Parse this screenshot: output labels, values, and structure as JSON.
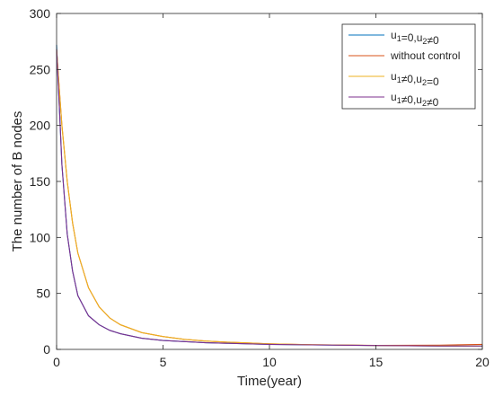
{
  "chart_data": {
    "type": "line",
    "xlabel": "Time(year)",
    "ylabel": "The number of B nodes",
    "xlim": [
      0,
      20
    ],
    "ylim": [
      0,
      300
    ],
    "xticks": [
      0,
      5,
      10,
      15,
      20
    ],
    "yticks": [
      0,
      50,
      100,
      150,
      200,
      250,
      300
    ],
    "grid": false,
    "legend_position": "top-right",
    "series": [
      {
        "name_parts": [
          [
            "u",
            "1"
          ],
          [
            "=0,u",
            ""
          ],
          [
            "",
            "2"
          ],
          [
            "≠0",
            ""
          ]
        ],
        "color": "#0072BD",
        "x": [
          0,
          0.1,
          0.25,
          0.5,
          0.75,
          1,
          1.5,
          2,
          2.5,
          3,
          4,
          5,
          6,
          7,
          8,
          10,
          12,
          15,
          18,
          20
        ],
        "y": [
          272,
          229,
          165,
          103,
          70,
          48,
          30,
          22,
          17,
          14,
          10,
          8,
          7,
          6,
          5.5,
          4.5,
          4,
          3.5,
          3,
          3
        ]
      },
      {
        "name_parts": [
          [
            "without control",
            ""
          ]
        ],
        "color": "#D95319",
        "x": [
          0,
          0.1,
          0.25,
          0.5,
          0.75,
          1,
          1.5,
          2,
          2.5,
          3,
          4,
          5,
          6,
          7,
          8,
          10,
          12,
          15,
          18,
          20
        ],
        "y": [
          268,
          240,
          200,
          150,
          113,
          86,
          55,
          38,
          28,
          22,
          15,
          11.5,
          9,
          7.5,
          6.5,
          5,
          4.2,
          3.6,
          3.8,
          4.5
        ]
      },
      {
        "name_parts": [
          [
            "u",
            "1"
          ],
          [
            "≠0,u",
            ""
          ],
          [
            "",
            "2"
          ],
          [
            "=0",
            ""
          ]
        ],
        "color": "#EDB120",
        "x": [
          0,
          0.1,
          0.25,
          0.5,
          0.75,
          1,
          1.5,
          2,
          2.5,
          3,
          4,
          5,
          6,
          7,
          8,
          10,
          12,
          15,
          18,
          20
        ],
        "y": [
          268,
          240,
          200,
          150,
          113,
          86,
          55,
          38,
          28,
          22,
          15,
          11.5,
          9,
          7.5,
          6.5,
          5,
          4.2,
          3.5,
          3,
          3
        ]
      },
      {
        "name_parts": [
          [
            "u",
            "1"
          ],
          [
            "≠0,u",
            ""
          ],
          [
            "",
            "2"
          ],
          [
            "≠0",
            ""
          ]
        ],
        "color": "#7E2F8E",
        "x": [
          0,
          0.1,
          0.25,
          0.5,
          0.75,
          1,
          1.5,
          2,
          2.5,
          3,
          4,
          5,
          6,
          7,
          8,
          10,
          12,
          15,
          18,
          20
        ],
        "y": [
          268,
          229,
          165,
          103,
          70,
          48,
          30,
          22,
          17,
          14,
          10,
          8,
          7,
          6,
          5.5,
          4.5,
          4,
          3.5,
          3,
          3
        ]
      }
    ]
  }
}
